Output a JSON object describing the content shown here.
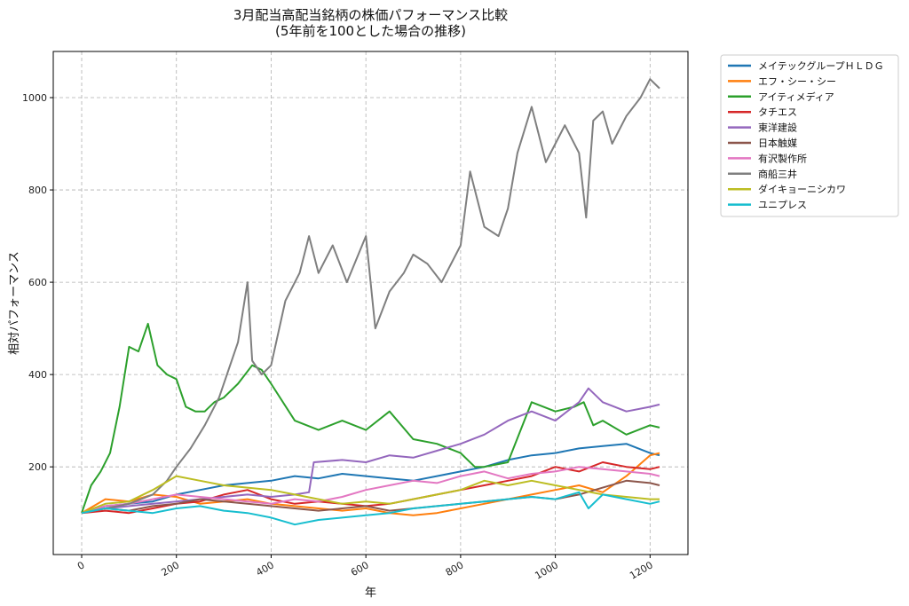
{
  "chart_data": {
    "type": "line",
    "title": "3月配当高配当銘柄の株価パフォーマンス比較",
    "subtitle": "(5年前を100とした場合の推移)",
    "xlabel": "年",
    "ylabel": "相対パフォーマンス",
    "xlim": [
      -60,
      1280
    ],
    "ylim": [
      10,
      1100
    ],
    "xticks": [
      0,
      200,
      400,
      600,
      800,
      1000,
      1200
    ],
    "yticks": [
      200,
      400,
      600,
      800,
      1000
    ],
    "grid": true,
    "legend_position": "outside-top-right",
    "series": [
      {
        "name": "メイテックグループＨＬＤＧ",
        "color": "#1f77b4",
        "x": [
          0,
          50,
          100,
          150,
          200,
          250,
          300,
          350,
          400,
          450,
          500,
          550,
          600,
          650,
          700,
          750,
          800,
          850,
          900,
          950,
          1000,
          1050,
          1100,
          1150,
          1200,
          1220
        ],
        "y": [
          100,
          115,
          120,
          125,
          140,
          150,
          160,
          165,
          170,
          180,
          175,
          185,
          180,
          175,
          170,
          180,
          190,
          200,
          215,
          225,
          230,
          240,
          245,
          250,
          230,
          225
        ]
      },
      {
        "name": "エフ・シー・シー",
        "color": "#ff7f0e",
        "x": [
          0,
          50,
          100,
          150,
          200,
          250,
          300,
          350,
          400,
          450,
          500,
          550,
          600,
          650,
          700,
          750,
          800,
          850,
          900,
          950,
          1000,
          1050,
          1100,
          1150,
          1200,
          1220
        ],
        "y": [
          100,
          130,
          125,
          140,
          135,
          120,
          125,
          130,
          120,
          115,
          110,
          105,
          110,
          100,
          95,
          100,
          110,
          120,
          130,
          140,
          150,
          160,
          145,
          180,
          225,
          230
        ]
      },
      {
        "name": "アイティメディア",
        "color": "#2ca02c",
        "x": [
          0,
          20,
          40,
          60,
          80,
          100,
          120,
          140,
          160,
          180,
          200,
          220,
          240,
          260,
          280,
          300,
          330,
          360,
          380,
          400,
          450,
          500,
          550,
          600,
          650,
          700,
          750,
          800,
          830,
          850,
          900,
          950,
          1000,
          1040,
          1060,
          1080,
          1100,
          1150,
          1200,
          1220
        ],
        "y": [
          100,
          160,
          190,
          230,
          330,
          460,
          450,
          510,
          420,
          400,
          390,
          330,
          320,
          320,
          340,
          350,
          380,
          420,
          410,
          380,
          300,
          280,
          300,
          280,
          320,
          260,
          250,
          230,
          200,
          200,
          210,
          340,
          320,
          330,
          340,
          290,
          300,
          270,
          290,
          285
        ]
      },
      {
        "name": "タチエス",
        "color": "#d62728",
        "x": [
          0,
          50,
          100,
          150,
          200,
          250,
          300,
          350,
          400,
          450,
          500,
          550,
          600,
          650,
          700,
          750,
          800,
          850,
          900,
          950,
          1000,
          1050,
          1100,
          1150,
          1200,
          1220
        ],
        "y": [
          100,
          105,
          100,
          110,
          120,
          125,
          140,
          150,
          130,
          120,
          125,
          120,
          115,
          120,
          130,
          140,
          150,
          160,
          170,
          180,
          200,
          190,
          210,
          200,
          195,
          200
        ]
      },
      {
        "name": "東洋建設",
        "color": "#9467bd",
        "x": [
          0,
          50,
          100,
          150,
          200,
          250,
          300,
          350,
          400,
          450,
          480,
          490,
          550,
          600,
          650,
          700,
          750,
          800,
          850,
          900,
          950,
          1000,
          1050,
          1070,
          1100,
          1150,
          1200,
          1220
        ],
        "y": [
          100,
          110,
          115,
          120,
          125,
          130,
          135,
          140,
          135,
          140,
          145,
          210,
          215,
          210,
          225,
          220,
          235,
          250,
          270,
          300,
          320,
          300,
          340,
          370,
          340,
          320,
          330,
          335
        ]
      },
      {
        "name": "日本触媒",
        "color": "#8c564b",
        "x": [
          0,
          50,
          100,
          150,
          200,
          250,
          300,
          350,
          400,
          450,
          500,
          550,
          600,
          650,
          700,
          750,
          800,
          850,
          900,
          950,
          1000,
          1050,
          1100,
          1150,
          1200,
          1220
        ],
        "y": [
          100,
          110,
          105,
          115,
          120,
          130,
          125,
          120,
          115,
          110,
          105,
          110,
          115,
          105,
          110,
          115,
          120,
          125,
          130,
          135,
          130,
          140,
          155,
          170,
          165,
          160
        ]
      },
      {
        "name": "有沢製作所",
        "color": "#e377c2",
        "x": [
          0,
          50,
          100,
          150,
          200,
          250,
          300,
          350,
          400,
          450,
          500,
          550,
          600,
          650,
          700,
          750,
          800,
          850,
          900,
          950,
          1000,
          1050,
          1100,
          1150,
          1200,
          1220
        ],
        "y": [
          100,
          115,
          120,
          130,
          140,
          135,
          130,
          125,
          120,
          130,
          125,
          135,
          150,
          160,
          170,
          165,
          180,
          190,
          175,
          185,
          190,
          200,
          195,
          190,
          185,
          180
        ]
      },
      {
        "name": "商船三井",
        "color": "#7f7f7f",
        "x": [
          0,
          50,
          100,
          150,
          180,
          200,
          230,
          260,
          290,
          330,
          350,
          360,
          380,
          400,
          430,
          460,
          480,
          500,
          530,
          560,
          580,
          600,
          620,
          650,
          680,
          700,
          730,
          760,
          800,
          820,
          850,
          880,
          900,
          920,
          950,
          980,
          1000,
          1020,
          1050,
          1065,
          1080,
          1100,
          1120,
          1150,
          1180,
          1200,
          1220
        ],
        "y": [
          100,
          110,
          120,
          140,
          170,
          200,
          240,
          290,
          350,
          470,
          600,
          430,
          400,
          420,
          560,
          620,
          700,
          620,
          680,
          600,
          650,
          700,
          500,
          580,
          620,
          660,
          640,
          600,
          680,
          840,
          720,
          700,
          760,
          880,
          980,
          860,
          900,
          940,
          880,
          740,
          950,
          970,
          900,
          960,
          1000,
          1040,
          1020
        ]
      },
      {
        "name": "ダイキョーニシカワ",
        "color": "#bcbd22",
        "x": [
          0,
          50,
          100,
          150,
          200,
          250,
          300,
          350,
          400,
          450,
          500,
          550,
          600,
          650,
          700,
          750,
          800,
          850,
          900,
          950,
          1000,
          1050,
          1100,
          1150,
          1200,
          1220
        ],
        "y": [
          100,
          120,
          125,
          150,
          180,
          170,
          160,
          155,
          150,
          140,
          130,
          120,
          125,
          120,
          130,
          140,
          150,
          170,
          160,
          170,
          160,
          150,
          140,
          135,
          130,
          130
        ]
      },
      {
        "name": "ユニプレス",
        "color": "#17becf",
        "x": [
          0,
          50,
          100,
          150,
          200,
          250,
          300,
          350,
          400,
          450,
          500,
          550,
          600,
          650,
          700,
          750,
          800,
          850,
          900,
          950,
          1000,
          1050,
          1070,
          1100,
          1150,
          1200,
          1220
        ],
        "y": [
          100,
          110,
          105,
          100,
          110,
          115,
          105,
          100,
          90,
          75,
          85,
          90,
          95,
          100,
          110,
          115,
          120,
          125,
          130,
          135,
          130,
          145,
          110,
          140,
          130,
          120,
          125
        ]
      }
    ]
  }
}
